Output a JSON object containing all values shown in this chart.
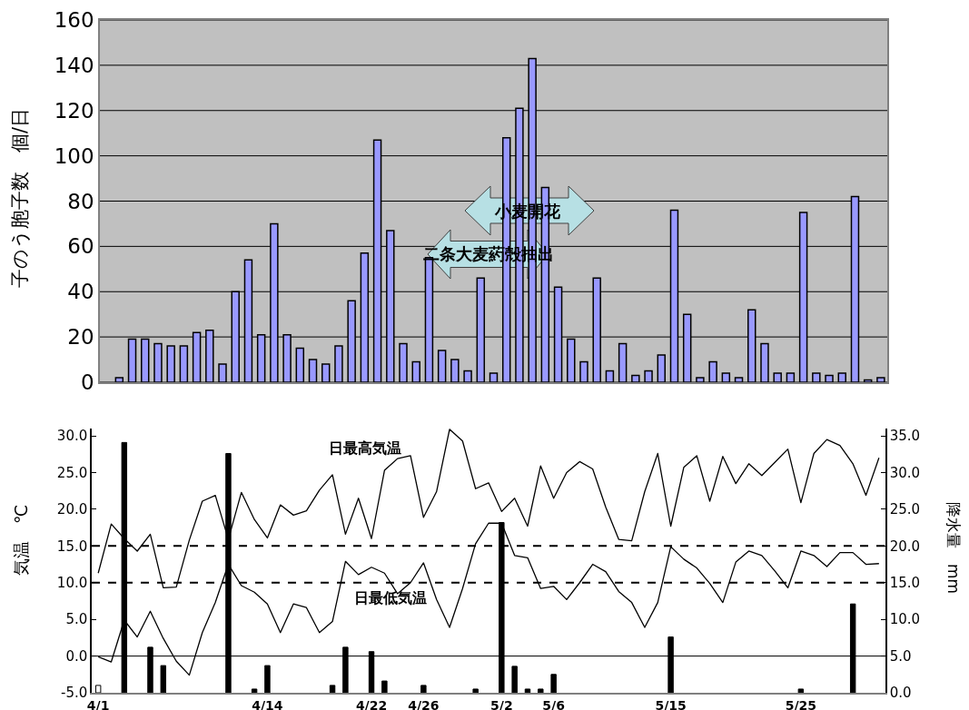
{
  "chart_data": [
    {
      "type": "bar",
      "ylabel": "子のう胞子数　個/日",
      "categories": [
        null,
        null,
        null,
        null,
        null,
        null,
        null,
        null,
        null,
        null,
        null,
        null,
        null,
        null,
        null,
        null,
        null,
        null,
        null,
        null,
        null,
        null,
        null,
        null,
        null,
        null,
        null,
        null,
        null,
        null,
        null,
        null,
        null,
        null,
        null,
        null,
        null,
        null,
        null,
        null,
        null,
        null,
        null,
        null,
        null,
        null,
        null,
        null,
        null,
        null,
        null,
        null,
        null,
        null,
        null,
        null,
        null,
        null,
        null,
        null,
        null
      ],
      "values": [
        null,
        2,
        19,
        19,
        17,
        16,
        16,
        22,
        23,
        8,
        40,
        54,
        21,
        70,
        21,
        15,
        10,
        8,
        16,
        36,
        57,
        107,
        67,
        17,
        9,
        55,
        14,
        10,
        5,
        46,
        4,
        108,
        121,
        143,
        86,
        42,
        19,
        9,
        46,
        5,
        17,
        3,
        5,
        12,
        76,
        30,
        2,
        9,
        4,
        2,
        32,
        17,
        4,
        4,
        75,
        4,
        3,
        4,
        82,
        1,
        2
      ],
      "color": "#9999ff",
      "ylim": [
        0,
        160
      ],
      "yticks": [
        0,
        20,
        40,
        60,
        80,
        100,
        120,
        140,
        160
      ],
      "grid": "y",
      "tick_labels": "y",
      "annotations": [
        "小麦開花",
        "二条大麦葯殻抽出"
      ]
    },
    {
      "type": "line",
      "ylabel": "気温　℃",
      "y2label": "降水量　mm",
      "categories": [
        "4/1",
        null,
        null,
        null,
        null,
        null,
        null,
        null,
        null,
        null,
        null,
        null,
        null,
        "4/14",
        null,
        null,
        null,
        null,
        null,
        null,
        null,
        "4/22",
        null,
        null,
        null,
        "4/26",
        null,
        null,
        null,
        null,
        null,
        "5/2",
        null,
        null,
        null,
        "5/6",
        null,
        null,
        null,
        null,
        null,
        null,
        null,
        null,
        "5/15",
        null,
        null,
        null,
        null,
        null,
        null,
        null,
        null,
        null,
        "5/25",
        null,
        null,
        null,
        null,
        null,
        null
      ],
      "series": [
        {
          "name": "日最高気温",
          "color": "#000000",
          "values": [
            11.3,
            18.0,
            16.0,
            14.3,
            16.6,
            9.3,
            9.4,
            15.8,
            21.1,
            21.9,
            15.9,
            22.3,
            18.6,
            16.1,
            20.6,
            19.2,
            19.8,
            22.6,
            24.7,
            16.6,
            21.5,
            16.0,
            25.3,
            26.9,
            27.3,
            18.9,
            22.4,
            30.9,
            29.3,
            22.8,
            23.6,
            19.7,
            21.5,
            17.7,
            25.9,
            21.5,
            25.0,
            26.5,
            25.5,
            20.3,
            15.9,
            15.7,
            22.4,
            27.6,
            17.7,
            25.7,
            27.3,
            21.1,
            27.2,
            23.5,
            26.2,
            24.6,
            26.4,
            28.2,
            20.9,
            27.6,
            29.5,
            28.7,
            26.2,
            21.9,
            27.0
          ]
        },
        {
          "name": "日最低気温",
          "color": "#000000",
          "values": [
            -0.1,
            -0.8,
            4.9,
            2.6,
            6.1,
            2.4,
            -0.7,
            -2.6,
            3.2,
            7.3,
            12.5,
            9.6,
            8.7,
            7.1,
            3.2,
            7.1,
            6.6,
            3.2,
            4.7,
            12.9,
            11.1,
            12.1,
            11.3,
            8.5,
            10.0,
            12.7,
            7.7,
            3.9,
            9.2,
            15.3,
            18.1,
            18.1,
            13.7,
            13.4,
            9.2,
            9.5,
            7.7,
            10.0,
            12.5,
            11.5,
            8.8,
            7.3,
            3.9,
            7.3,
            14.9,
            13.2,
            12.0,
            9.9,
            7.3,
            12.8,
            14.3,
            13.7,
            11.6,
            9.3,
            14.3,
            13.7,
            12.2,
            14.1,
            14.1,
            12.5,
            12.6
          ]
        },
        {
          "type": "bar",
          "axis": "y2",
          "color": "#000000",
          "colors": [
            "#ffffff",
            "#000000",
            "#000000",
            "#000000",
            "#000000",
            "#000000",
            "#000000",
            "#000000",
            "#000000",
            "#000000",
            "#000000",
            "#000000",
            "#000000",
            "#000000",
            "#000000",
            "#000000",
            "#000000",
            "#000000",
            "#000000",
            "#000000",
            "#000000",
            "#000000",
            "#000000",
            "#000000",
            "#000000",
            "#000000",
            "#000000",
            "#000000",
            "#000000",
            "#000000",
            "#000000",
            "#000000",
            "#000000",
            "#000000",
            "#000000",
            "#000000",
            "#000000",
            "#000000",
            "#000000",
            "#000000",
            "#000000",
            "#000000",
            "#000000",
            "#000000",
            "#000000",
            "#000000",
            "#000000",
            "#000000",
            "#000000",
            "#000000",
            "#000000",
            "#000000",
            "#000000",
            "#000000",
            "#000000",
            "#000000",
            "#000000",
            "#000000",
            "#000000",
            "#000000",
            "#000000"
          ],
          "values": [
            1.0,
            0,
            34.1,
            0,
            6.2,
            3.7,
            0,
            0,
            0,
            0,
            32.6,
            0,
            0.5,
            3.7,
            0,
            0,
            0,
            0,
            1.0,
            6.2,
            0,
            5.6,
            1.6,
            0,
            0,
            1.0,
            0,
            0,
            0,
            0.5,
            0,
            23.2,
            3.6,
            0.5,
            0.5,
            2.5,
            0,
            0,
            0,
            0,
            0,
            0,
            0,
            0,
            7.6,
            0,
            0,
            0,
            0,
            0,
            0,
            0,
            0,
            0,
            0.5,
            0,
            0,
            0,
            12.1,
            0,
            0
          ]
        }
      ],
      "ylim": [
        -5,
        31
      ],
      "yticks": [
        {
          "value": -5,
          "label": "-5.0"
        },
        {
          "value": 0,
          "label": "0.0"
        },
        {
          "value": 5,
          "label": "5.0"
        },
        {
          "value": 10,
          "label": "10.0"
        },
        {
          "value": 15,
          "label": "15.0"
        },
        {
          "value": 20,
          "label": "20.0"
        },
        {
          "value": 25,
          "label": "25.0"
        },
        {
          "value": 30,
          "label": "30.0"
        }
      ],
      "y2lim": [
        0,
        36
      ],
      "y2ticks": [
        {
          "value": 0,
          "label": "0.0"
        },
        {
          "value": 5,
          "label": "5.0"
        },
        {
          "value": 10,
          "label": "10.0"
        },
        {
          "value": 15,
          "label": "15.0"
        },
        {
          "value": 20,
          "label": "20.0"
        },
        {
          "value": 25,
          "label": "25.0"
        },
        {
          "value": 30,
          "label": "30.0"
        },
        {
          "value": 35,
          "label": "35.0"
        }
      ],
      "ref_lines": [
        {
          "axis": "y",
          "value": 15,
          "line_style": "dashed"
        },
        {
          "axis": "y",
          "value": 10,
          "line_style": "dashed"
        },
        {
          "axis": "y",
          "value": 0,
          "line_style": "solid"
        }
      ]
    }
  ]
}
